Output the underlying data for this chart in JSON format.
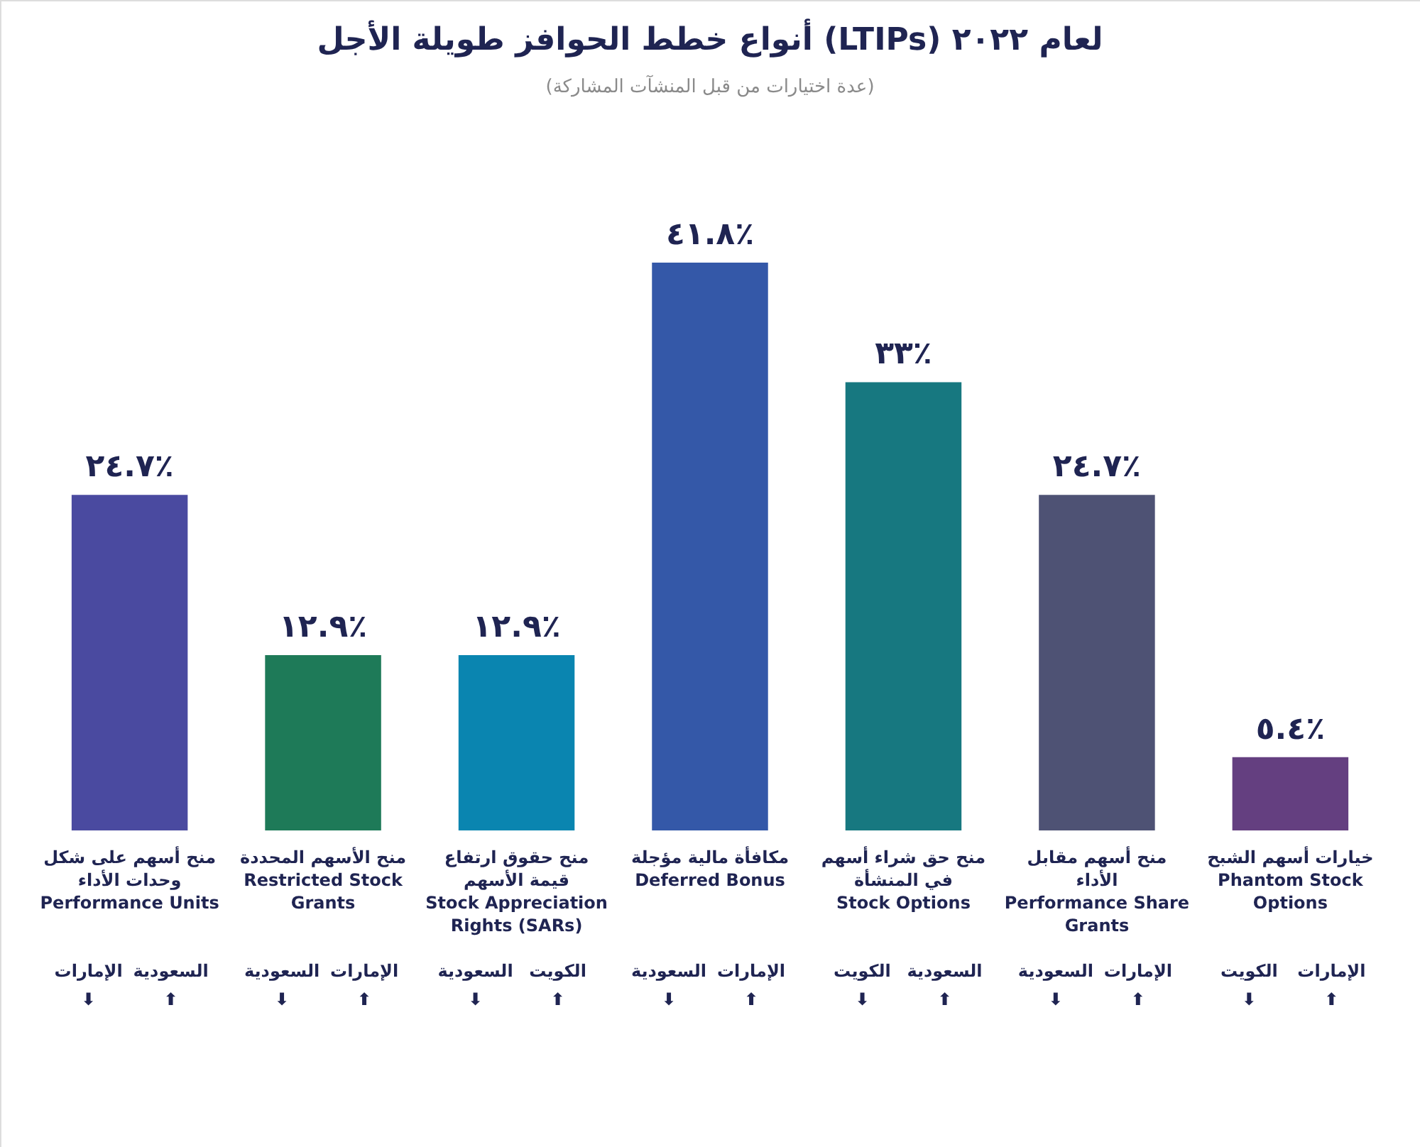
{
  "chart_data": {
    "type": "bar",
    "title": "أنواع خطط الحوافز طويلة الأجل (LTIPs) لعام ٢٠٢٢",
    "subtitle": "(عدة اختيارات من قبل المنشآت المشاركة)",
    "categories": [
      "منح أسهم على شكل وحدات الأداء\nPerformance Units",
      "منح الأسهم المحددة\nRestricted Stock Grants",
      "منح حقوق ارتفاع قيمة الأسهم\nStock Appreciation Rights (SARs)",
      "مكافأة مالية مؤجلة\nDeferred Bonus",
      "منح حق شراء أسهم في المنشأة\nStock Options",
      "منح أسهم مقابل الأداء\nPerformance Share Grants",
      "خيارات أسهم الشبح\nPhantom Stock Options"
    ],
    "values": [
      24.7,
      12.9,
      12.9,
      41.8,
      33,
      24.7,
      5.4
    ],
    "colors": [
      "#4a4aa0",
      "#1e7a58",
      "#0a85b0",
      "#3458a8",
      "#177880",
      "#4e5274",
      "#643f80"
    ],
    "value_labels": [
      "٢٤.٧٪",
      "١٢.٩٪",
      "١٢.٩٪",
      "٤١.٨٪",
      "٣٣٪",
      "٢٤.٧٪",
      "٥.٤٪"
    ],
    "annotations": [
      "السعودية\n⬆",
      "الإمارات\n⬇",
      "الإمارات\n⬆",
      "السعودية\n⬇",
      "الكويت\n⬆",
      "السعودية\n⬇",
      "الإمارات\n⬆",
      "السعودية\n⬇",
      "السعودية\n⬆",
      "الكويت\n⬇",
      "الإمارات\n⬆",
      "السعودية\n⬇",
      "الإمارات\n⬆",
      "الكويت\n⬇"
    ]
  }
}
